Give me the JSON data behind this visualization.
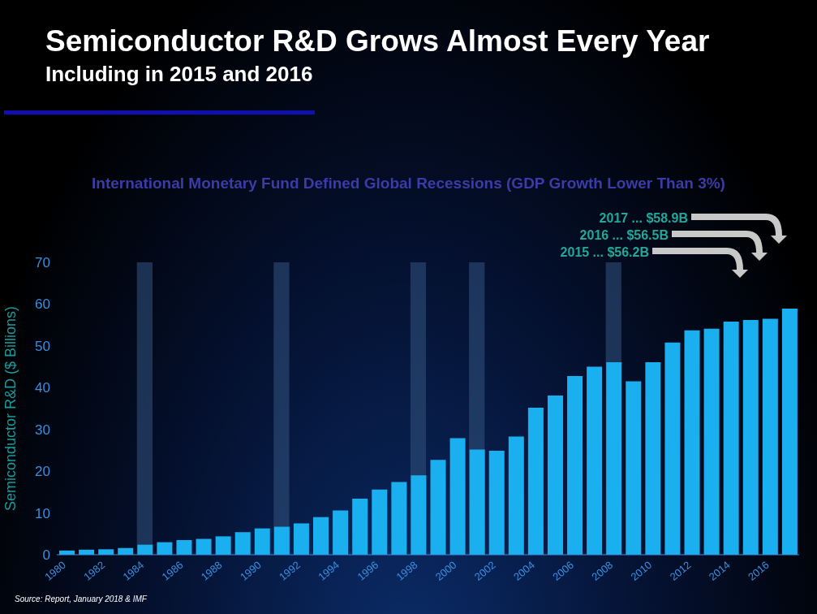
{
  "chart_data": {
    "type": "bar",
    "title": "Semiconductor R&D Grows Almost Every Year",
    "subtitle": "Including in 2015 and 2016",
    "ylabel": "Semiconductor R&D ($ Billions)",
    "x": [
      1980,
      1981,
      1982,
      1983,
      1984,
      1985,
      1986,
      1987,
      1988,
      1989,
      1990,
      1991,
      1992,
      1993,
      1994,
      1995,
      1996,
      1997,
      1998,
      1999,
      2000,
      2001,
      2002,
      2003,
      2004,
      2005,
      2006,
      2007,
      2008,
      2009,
      2010,
      2011,
      2012,
      2013,
      2014,
      2015,
      2016,
      2017
    ],
    "values": [
      1.0,
      1.2,
      1.3,
      1.6,
      2.4,
      3.0,
      3.5,
      3.8,
      4.4,
      5.4,
      6.3,
      6.7,
      7.5,
      9.0,
      10.6,
      13.4,
      15.6,
      17.4,
      19.0,
      22.7,
      27.9,
      25.2,
      24.9,
      28.3,
      35.2,
      38.1,
      42.8,
      45.0,
      46.1,
      41.5,
      46.1,
      50.8,
      53.7,
      54.1,
      55.8,
      56.2,
      56.5,
      58.9
    ],
    "color": "#1ab0f0",
    "xlim": [
      1979.5,
      2017.5
    ],
    "xticks": [
      1980,
      1982,
      1984,
      1986,
      1988,
      1990,
      1992,
      1994,
      1996,
      1998,
      2000,
      2002,
      2004,
      2006,
      2008,
      2010,
      2012,
      2014,
      2016
    ],
    "ylim": [
      0,
      70
    ],
    "yticks": [
      0,
      10,
      20,
      30,
      40,
      50,
      60,
      70
    ],
    "bands": [
      {
        "axis": "x",
        "from": 1983.6,
        "to": 1984.4,
        "color": "#2e4f7a"
      },
      {
        "axis": "x",
        "from": 1990.6,
        "to": 1991.4,
        "color": "#2e4f7a"
      },
      {
        "axis": "x",
        "from": 1997.6,
        "to": 1998.4,
        "color": "#2e4f7a"
      },
      {
        "axis": "x",
        "from": 2000.6,
        "to": 2001.4,
        "color": "#2e4f7a"
      },
      {
        "axis": "x",
        "from": 2007.6,
        "to": 2008.4,
        "color": "#2e4f7a"
      }
    ],
    "annotations": [
      "International Monetary Fund Defined Global Recessions (GDP Growth Lower Than 3%)",
      "Source: Report, January 2018 & IMF",
      "2017 ... $58.9B",
      "2016 ... $56.5B",
      "2015 ... $56.2B"
    ]
  }
}
